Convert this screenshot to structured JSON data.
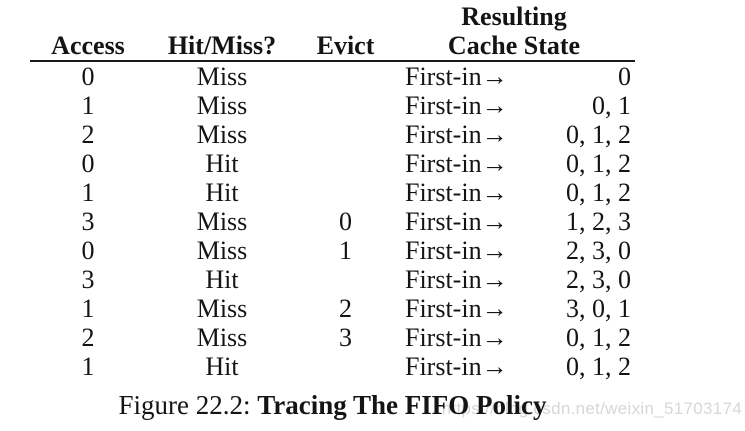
{
  "table": {
    "headers": {
      "access": "Access",
      "hit_miss": "Hit/Miss?",
      "evict": "Evict",
      "resulting_line1": "Resulting",
      "resulting_line2": "Cache State"
    },
    "first_in_label": "First-in→",
    "rows": [
      {
        "access": "0",
        "hit_miss": "Miss",
        "evict": "",
        "state": "0"
      },
      {
        "access": "1",
        "hit_miss": "Miss",
        "evict": "",
        "state": "0, 1"
      },
      {
        "access": "2",
        "hit_miss": "Miss",
        "evict": "",
        "state": "0, 1, 2"
      },
      {
        "access": "0",
        "hit_miss": "Hit",
        "evict": "",
        "state": "0, 1, 2"
      },
      {
        "access": "1",
        "hit_miss": "Hit",
        "evict": "",
        "state": "0, 1, 2"
      },
      {
        "access": "3",
        "hit_miss": "Miss",
        "evict": "0",
        "state": "1, 2, 3"
      },
      {
        "access": "0",
        "hit_miss": "Miss",
        "evict": "1",
        "state": "2, 3, 0"
      },
      {
        "access": "3",
        "hit_miss": "Hit",
        "evict": "",
        "state": "2, 3, 0"
      },
      {
        "access": "1",
        "hit_miss": "Miss",
        "evict": "2",
        "state": "3, 0, 1"
      },
      {
        "access": "2",
        "hit_miss": "Miss",
        "evict": "3",
        "state": "0, 1, 2"
      },
      {
        "access": "1",
        "hit_miss": "Hit",
        "evict": "",
        "state": "0, 1, 2"
      }
    ]
  },
  "caption": {
    "prefix": "Figure 22.2: ",
    "title": "Tracing The FIFO Policy"
  },
  "watermark": {
    "text": "https://blog.csdn.net/weixin_51703174",
    "color": "#d7d7d7"
  },
  "colors": {
    "text": "#141414",
    "rule": "#1a1a1a",
    "background": "#ffffff"
  }
}
